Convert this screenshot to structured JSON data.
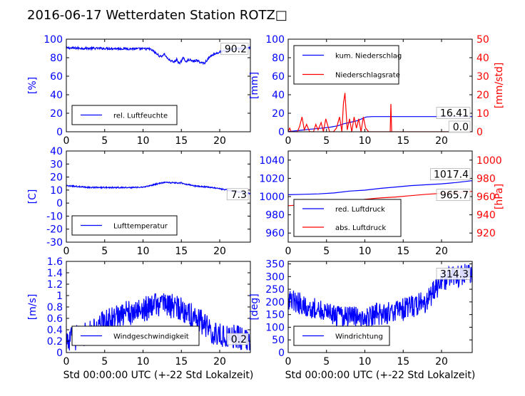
{
  "page": {
    "title": "2016-06-17 Wetterdaten Station ROTZ□"
  },
  "colors": {
    "primary": "#0000ff",
    "secondary": "#ff0000",
    "axis": "#000000"
  },
  "chart_data": [
    {
      "type": "line",
      "ylabel": "[%]",
      "xlim": [
        0,
        24
      ],
      "xticks": [
        0,
        5,
        10,
        15,
        20
      ],
      "ylim": [
        0,
        100
      ],
      "yticks": [
        0,
        20,
        40,
        60,
        80,
        100
      ],
      "legend_placement": "lower-left",
      "annotations": [
        {
          "text": "90.2",
          "series": 0
        }
      ],
      "series": [
        {
          "name": "rel. Luftfeuchte",
          "color": "#0000ff",
          "noise": 1.2,
          "x": [
            0,
            2,
            5,
            8,
            10,
            10.8,
            11.2,
            11.8,
            12.3,
            12.8,
            13.2,
            13.6,
            14,
            14.4,
            14.8,
            15.2,
            15.6,
            16,
            16.5,
            17,
            17.5,
            18,
            18.5,
            19,
            20,
            21,
            22,
            23,
            24
          ],
          "y": [
            90.5,
            90.2,
            90,
            89.7,
            89.5,
            89.5,
            88,
            84,
            81,
            84,
            79,
            77,
            75,
            78,
            73,
            80,
            76,
            78,
            76,
            77,
            75,
            74,
            79,
            83,
            86,
            88,
            89.5,
            90,
            90.2
          ]
        }
      ]
    },
    {
      "type": "line",
      "ylabel": "[mm]",
      "ylabel_right": "[mm/std]",
      "xlim": [
        0,
        24
      ],
      "xticks": [
        0,
        5,
        10,
        15,
        20
      ],
      "ylim": [
        0,
        100
      ],
      "yticks": [
        0,
        20,
        40,
        60,
        80,
        100
      ],
      "ylim_right": [
        0,
        50
      ],
      "yticks_right": [
        0,
        10,
        20,
        30,
        40,
        50
      ],
      "legend_placement": "upper-left",
      "annotations": [
        {
          "text": "16.41",
          "series": 0
        },
        {
          "text": "0.0",
          "series": 1
        }
      ],
      "series": [
        {
          "name": "kum. Niederschlag",
          "color": "#0000ff",
          "axis": "left",
          "x": [
            0,
            0.5,
            1.5,
            2.5,
            3.5,
            4.5,
            5.5,
            6.5,
            7.2,
            8,
            9,
            9.6,
            10.2,
            11,
            13.4,
            13.6,
            16,
            20,
            24
          ],
          "y": [
            0.3,
            0.6,
            1.5,
            2.5,
            3.2,
            4,
            5,
            6.5,
            8.5,
            10,
            12,
            14,
            16,
            16.4,
            16.41,
            16.41,
            16.41,
            16.41,
            16.41
          ]
        },
        {
          "name": "Niederschlagsrate",
          "color": "#ff0000",
          "axis": "right",
          "x": [
            0,
            0.2,
            0.4,
            1.2,
            1.5,
            1.8,
            2.1,
            2.4,
            2.8,
            3.3,
            3.6,
            3.9,
            4.3,
            4.6,
            4.9,
            5.4,
            5.9,
            6.3,
            6.7,
            7.0,
            7.2,
            7.4,
            7.7,
            8.0,
            8.3,
            8.6,
            8.9,
            9.2,
            9.5,
            9.8,
            10.1,
            10.5,
            11.5,
            13.3,
            13.4,
            13.5,
            13.6,
            14,
            24
          ],
          "y": [
            0,
            2,
            0,
            0,
            3,
            8,
            1,
            4,
            0,
            0,
            4,
            1,
            5,
            0,
            7,
            0,
            0,
            2,
            8,
            0,
            15,
            21,
            1,
            7,
            0,
            8,
            2,
            7,
            0,
            8,
            2,
            0,
            0,
            0,
            15,
            0,
            0,
            0,
            0
          ]
        }
      ]
    },
    {
      "type": "line",
      "ylabel": "[C]",
      "xlim": [
        0,
        24
      ],
      "xticks": [
        0,
        5,
        10,
        15,
        20
      ],
      "ylim": [
        -30,
        40
      ],
      "yticks": [
        -30,
        -20,
        -10,
        0,
        10,
        20,
        30,
        40
      ],
      "legend_placement": "lower-left",
      "annotations": [
        {
          "text": "7.3",
          "series": 0
        }
      ],
      "series": [
        {
          "name": "Lufttemperatur",
          "color": "#0000ff",
          "noise": 0.5,
          "x": [
            0,
            1,
            2,
            3,
            4,
            5,
            6,
            7,
            8,
            9,
            10,
            11,
            12,
            13,
            14,
            15,
            16,
            17,
            18,
            19,
            20,
            21,
            22,
            23,
            24
          ],
          "y": [
            13.2,
            13,
            12.5,
            12,
            12,
            12,
            12,
            12,
            12,
            12,
            12.2,
            13.5,
            15,
            16,
            15.5,
            15.5,
            14,
            13,
            12.5,
            12,
            11,
            10,
            9,
            8,
            7.3
          ]
        }
      ]
    },
    {
      "type": "line",
      "ylabel": "",
      "ylabel_right": "[hPa]",
      "xlim": [
        0,
        24
      ],
      "xticks": [
        0,
        5,
        10,
        15,
        20
      ],
      "ylim": [
        950,
        1050
      ],
      "yticks": [
        960,
        980,
        1000,
        1020,
        1040
      ],
      "ylim_right": [
        910,
        1010
      ],
      "yticks_right": [
        920,
        940,
        960,
        980,
        1000
      ],
      "legend_placement": "lower-left",
      "annotations": [
        {
          "text": "1017.4",
          "series": 0
        },
        {
          "text": "965.7",
          "series": 1
        }
      ],
      "series": [
        {
          "name": "red. Luftdruck",
          "color": "#0000ff",
          "axis": "left",
          "x": [
            0,
            2,
            4,
            6,
            8,
            10,
            12,
            14,
            16,
            18,
            20,
            22,
            24
          ],
          "y": [
            1002,
            1002.5,
            1003,
            1004,
            1006,
            1007,
            1009,
            1010.5,
            1012,
            1013,
            1014,
            1015.5,
            1017.4
          ]
        },
        {
          "name": "abs. Luftdruck",
          "color": "#ff0000",
          "axis": "right",
          "x": [
            0,
            2,
            4,
            6,
            8,
            10,
            12,
            14,
            16,
            18,
            20,
            22,
            24
          ],
          "y": [
            950,
            951,
            952,
            953,
            955,
            957,
            958.5,
            959.5,
            961,
            962.5,
            963.5,
            964.5,
            965.7
          ]
        }
      ]
    },
    {
      "type": "line",
      "ylabel": "[m/s]",
      "xlabel": "Std 00:00:00 UTC (+-22 Std Lokalzeit)",
      "xlim": [
        0,
        24
      ],
      "xticks": [
        0,
        5,
        10,
        15,
        20
      ],
      "ylim": [
        0,
        1.6
      ],
      "yticks": [
        0,
        0.2,
        0.4,
        0.6,
        0.8,
        1.0,
        1.2,
        1.4,
        1.6
      ],
      "legend_placement": "lower-left",
      "annotations": [
        {
          "text": "0.2",
          "series": 0
        }
      ],
      "series": [
        {
          "name": "Windgeschwindigkeit",
          "color": "#0000ff",
          "noise": 0.22,
          "x": [
            0,
            1,
            2,
            3,
            4,
            5,
            6,
            7,
            8,
            9,
            10,
            11,
            12,
            13,
            14,
            15,
            16,
            17,
            18,
            19,
            20,
            21,
            22,
            23,
            24
          ],
          "y": [
            0.2,
            0.25,
            0.3,
            0.35,
            0.4,
            0.55,
            0.6,
            0.65,
            0.7,
            0.7,
            0.75,
            0.8,
            0.85,
            0.85,
            0.8,
            0.75,
            0.7,
            0.6,
            0.5,
            0.35,
            0.3,
            0.3,
            0.3,
            0.25,
            0.25
          ]
        }
      ]
    },
    {
      "type": "line",
      "ylabel": "[deg]",
      "xlabel": "Std 00:00:00 UTC (+-22 Std Lokalzeit)",
      "xlim": [
        0,
        24
      ],
      "xticks": [
        0,
        5,
        10,
        15,
        20
      ],
      "ylim": [
        0,
        360
      ],
      "yticks": [
        0,
        50,
        100,
        150,
        200,
        250,
        300,
        350
      ],
      "legend_placement": "lower-left",
      "annotations": [
        {
          "text": "314.3",
          "series": 0
        }
      ],
      "series": [
        {
          "name": "Windrichtung",
          "color": "#0000ff",
          "noise": 45,
          "x": [
            0,
            1,
            2,
            3,
            4,
            5,
            6,
            7,
            8,
            9,
            10,
            11,
            12,
            13,
            14,
            15,
            16,
            17,
            18,
            19,
            20,
            21,
            22,
            23,
            24
          ],
          "y": [
            210,
            200,
            190,
            180,
            170,
            160,
            150,
            140,
            140,
            135,
            130,
            150,
            150,
            155,
            165,
            170,
            180,
            190,
            200,
            240,
            280,
            300,
            300,
            305,
            314
          ]
        }
      ]
    }
  ]
}
